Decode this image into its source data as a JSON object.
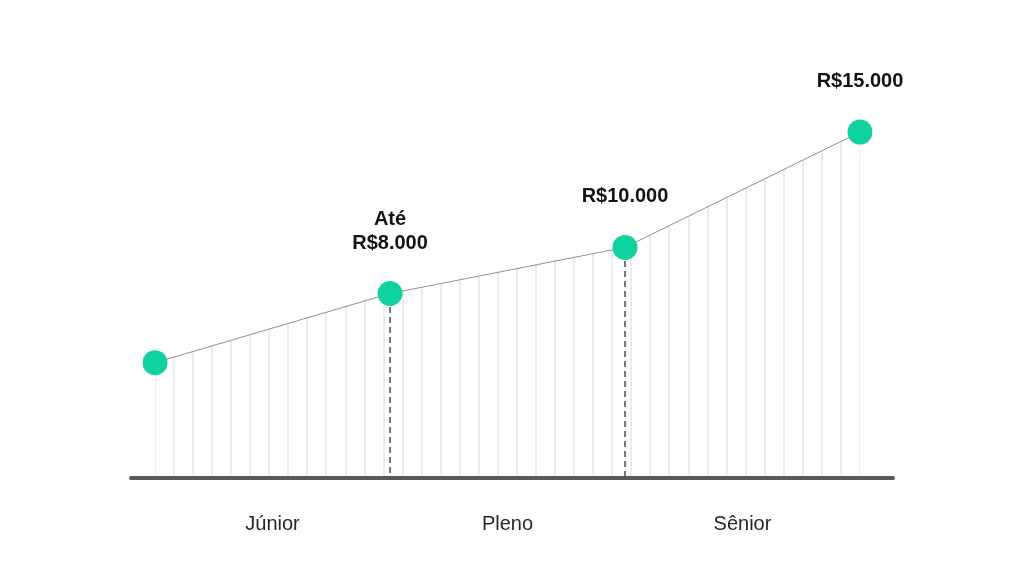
{
  "chart_data": {
    "type": "area",
    "categories": [
      null,
      null,
      null,
      null
    ],
    "values": [
      5000,
      8000,
      10000,
      15000
    ],
    "value_labels": [
      null,
      "Até\nR$8.000",
      "R$10.000",
      "R$15.000"
    ],
    "color": "#8f8f8f",
    "colors": [
      "#10d29e",
      "#10d29e",
      "#10d29e",
      "#10d29e"
    ],
    "marker": "circle",
    "line_style": "solid",
    "legend": false,
    "tick_labels": false,
    "annotations": [
      "Júnior",
      "Pleno",
      "Sênior"
    ]
  }
}
